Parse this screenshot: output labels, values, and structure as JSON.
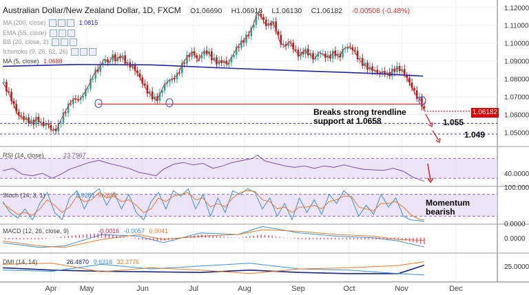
{
  "header": {
    "symbol": "Australian Dollar/New Zealand Dollar, 1D, FXCM",
    "open": "O1.06690",
    "high": "H1.06918",
    "low": "L1.06130",
    "close": "C1.06182",
    "change": "-0.00508 (-0.48%)"
  },
  "indicators": [
    {
      "label": "MA (200, close)",
      "value": "",
      "buttons": 3
    },
    {
      "label": "EMA (55, close)",
      "value": "",
      "buttons": 3
    },
    {
      "label": "BB (20, close, 2)",
      "value": "",
      "buttons": 3
    },
    {
      "label": "Ichimoku (9, 26, 52, 26)",
      "value": "",
      "buttons": 3
    },
    {
      "label": "MA (5, close)",
      "value": "1.0688",
      "buttons": 0
    }
  ],
  "ma200_value": "1.0815",
  "annotations": {
    "breaks_line1": "Breaks strong trendline",
    "breaks_line2": "support at 1.0658",
    "level1": "1.055",
    "level2": "1.049",
    "momentum_line1": "Momentum",
    "momentum_line2": "bearish"
  },
  "last_price_tag": "1.06182",
  "panels": {
    "rsi": {
      "label": "RSI (14, close)",
      "value": "23.7967"
    },
    "stoch": {
      "label": "Stoch (14, 3, 1)",
      "v1": "5.9281",
      "v2": "9.7898"
    },
    "macd": {
      "label": "MACD (12, 26, close, 9)",
      "v1": "-0.0016",
      "v2": "-0.0057",
      "v3": "0.0041"
    },
    "dmi": {
      "label": "DMI (14, 14)",
      "v1": "26.4870",
      "v2": "9.6316",
      "v3": "32.2776"
    }
  },
  "colors": {
    "up": "#26a69a",
    "down": "#b71c1c",
    "ma200": "#2222aa",
    "ma5": "#d32f2f",
    "trend": "#e53935",
    "rsi": "#7b4ea0",
    "stochK": "#3d8ed8",
    "stochD": "#e57c2d",
    "band": "#e6d9f5",
    "last": "#d80000"
  },
  "chart_data": {
    "type": "candlestick",
    "x_ticks": [
      "Apr",
      "May",
      "Jun",
      "Jul",
      "Aug",
      "Sep",
      "Oct",
      "Nov",
      "Dec"
    ],
    "y_ticks": [
      "1.12000",
      "1.11000",
      "1.10000",
      "1.09000",
      "1.08000",
      "1.07000",
      "1.06000",
      "1.05000"
    ],
    "ylim": [
      1.044,
      1.123
    ],
    "close_path": [
      [
        0,
        1.078
      ],
      [
        4,
        1.073
      ],
      [
        8,
        1.067
      ],
      [
        12,
        1.06
      ],
      [
        16,
        1.058
      ],
      [
        20,
        1.057
      ],
      [
        24,
        1.055
      ],
      [
        28,
        1.058
      ],
      [
        32,
        1.054
      ],
      [
        36,
        1.055
      ],
      [
        40,
        1.051
      ],
      [
        44,
        1.052
      ],
      [
        47,
        1.057
      ],
      [
        50,
        1.061
      ],
      [
        54,
        1.066
      ],
      [
        58,
        1.069
      ],
      [
        62,
        1.068
      ],
      [
        66,
        1.072
      ],
      [
        70,
        1.077
      ],
      [
        74,
        1.083
      ],
      [
        78,
        1.086
      ],
      [
        82,
        1.091
      ],
      [
        86,
        1.089
      ],
      [
        89,
        1.093
      ],
      [
        92,
        1.09
      ],
      [
        95,
        1.093
      ],
      [
        98,
        1.091
      ],
      [
        101,
        1.088
      ],
      [
        105,
        1.087
      ],
      [
        109,
        1.083
      ],
      [
        113,
        1.078
      ],
      [
        117,
        1.073
      ],
      [
        121,
        1.07
      ],
      [
        124,
        1.068
      ],
      [
        127,
        1.071
      ],
      [
        130,
        1.076
      ],
      [
        134,
        1.079
      ],
      [
        138,
        1.08
      ],
      [
        142,
        1.083
      ],
      [
        146,
        1.089
      ],
      [
        150,
        1.093
      ],
      [
        154,
        1.095
      ],
      [
        158,
        1.09
      ],
      [
        162,
        1.095
      ],
      [
        166,
        1.095
      ],
      [
        170,
        1.091
      ],
      [
        174,
        1.089
      ],
      [
        178,
        1.09
      ],
      [
        182,
        1.088
      ],
      [
        186,
        1.093
      ],
      [
        190,
        1.098
      ],
      [
        194,
        1.101
      ],
      [
        198,
        1.104
      ],
      [
        202,
        1.109
      ],
      [
        206,
        1.117
      ],
      [
        209,
        1.115
      ],
      [
        212,
        1.111
      ],
      [
        215,
        1.11
      ],
      [
        218,
        1.112
      ],
      [
        221,
        1.108
      ],
      [
        224,
        1.101
      ],
      [
        228,
        1.098
      ],
      [
        232,
        1.101
      ],
      [
        236,
        1.096
      ],
      [
        240,
        1.093
      ],
      [
        244,
        1.096
      ],
      [
        248,
        1.094
      ],
      [
        252,
        1.091
      ],
      [
        256,
        1.095
      ],
      [
        260,
        1.093
      ],
      [
        264,
        1.092
      ],
      [
        268,
        1.095
      ],
      [
        272,
        1.092
      ],
      [
        276,
        1.097
      ],
      [
        280,
        1.098
      ],
      [
        284,
        1.096
      ],
      [
        288,
        1.091
      ],
      [
        292,
        1.088
      ],
      [
        296,
        1.086
      ],
      [
        300,
        1.085
      ],
      [
        304,
        1.083
      ],
      [
        308,
        1.084
      ],
      [
        312,
        1.082
      ],
      [
        316,
        1.085
      ],
      [
        320,
        1.086
      ],
      [
        324,
        1.084
      ],
      [
        328,
        1.079
      ],
      [
        332,
        1.074
      ],
      [
        335,
        1.07
      ],
      [
        338,
        1.068
      ],
      [
        341,
        1.062
      ]
    ],
    "ma200": [
      [
        0,
        1.087
      ],
      [
        60,
        1.088
      ],
      [
        120,
        1.0878
      ],
      [
        180,
        1.086
      ],
      [
        240,
        1.0845
      ],
      [
        300,
        1.083
      ],
      [
        340,
        1.0815
      ]
    ],
    "trendline": {
      "level": 1.0658,
      "label": "support at 1.0658"
    },
    "levels": [
      1.055,
      1.049
    ],
    "rsi": {
      "ylim": [
        15,
        90
      ],
      "band": [
        30,
        70
      ],
      "ticks": [
        "40.0000"
      ],
      "values": [
        [
          0,
          45
        ],
        [
          8,
          50
        ],
        [
          16,
          38
        ],
        [
          24,
          35
        ],
        [
          32,
          40
        ],
        [
          40,
          30
        ],
        [
          47,
          38
        ],
        [
          54,
          48
        ],
        [
          62,
          55
        ],
        [
          70,
          62
        ],
        [
          78,
          66
        ],
        [
          86,
          60
        ],
        [
          94,
          55
        ],
        [
          102,
          50
        ],
        [
          110,
          42
        ],
        [
          118,
          38
        ],
        [
          124,
          35
        ],
        [
          130,
          48
        ],
        [
          138,
          58
        ],
        [
          146,
          62
        ],
        [
          154,
          57
        ],
        [
          162,
          60
        ],
        [
          170,
          50
        ],
        [
          178,
          55
        ],
        [
          186,
          62
        ],
        [
          194,
          66
        ],
        [
          202,
          70
        ],
        [
          206,
          77
        ],
        [
          212,
          65
        ],
        [
          220,
          60
        ],
        [
          228,
          55
        ],
        [
          236,
          52
        ],
        [
          244,
          55
        ],
        [
          252,
          50
        ],
        [
          260,
          55
        ],
        [
          268,
          52
        ],
        [
          276,
          57
        ],
        [
          284,
          52
        ],
        [
          292,
          48
        ],
        [
          300,
          47
        ],
        [
          308,
          46
        ],
        [
          316,
          50
        ],
        [
          324,
          44
        ],
        [
          332,
          32
        ],
        [
          341,
          23.8
        ]
      ]
    },
    "stoch": {
      "ylim": [
        0,
        100
      ],
      "band": [
        20,
        80
      ],
      "ticks": [
        "100.0000",
        "0.0000"
      ],
      "k": [
        [
          0,
          60
        ],
        [
          6,
          30
        ],
        [
          12,
          15
        ],
        [
          18,
          40
        ],
        [
          24,
          10
        ],
        [
          30,
          55
        ],
        [
          36,
          85
        ],
        [
          42,
          30
        ],
        [
          48,
          10
        ],
        [
          54,
          70
        ],
        [
          60,
          90
        ],
        [
          66,
          40
        ],
        [
          72,
          80
        ],
        [
          78,
          95
        ],
        [
          84,
          50
        ],
        [
          90,
          85
        ],
        [
          96,
          40
        ],
        [
          102,
          80
        ],
        [
          108,
          30
        ],
        [
          114,
          10
        ],
        [
          120,
          60
        ],
        [
          126,
          85
        ],
        [
          132,
          40
        ],
        [
          138,
          90
        ],
        [
          144,
          75
        ],
        [
          150,
          95
        ],
        [
          156,
          40
        ],
        [
          162,
          80
        ],
        [
          168,
          20
        ],
        [
          174,
          70
        ],
        [
          180,
          30
        ],
        [
          186,
          90
        ],
        [
          192,
          80
        ],
        [
          198,
          95
        ],
        [
          204,
          85
        ],
        [
          210,
          40
        ],
        [
          216,
          70
        ],
        [
          222,
          20
        ],
        [
          228,
          55
        ],
        [
          234,
          10
        ],
        [
          240,
          70
        ],
        [
          246,
          30
        ],
        [
          252,
          65
        ],
        [
          258,
          25
        ],
        [
          264,
          80
        ],
        [
          270,
          55
        ],
        [
          276,
          90
        ],
        [
          282,
          70
        ],
        [
          288,
          20
        ],
        [
          294,
          50
        ],
        [
          300,
          25
        ],
        [
          306,
          80
        ],
        [
          312,
          45
        ],
        [
          318,
          70
        ],
        [
          324,
          20
        ],
        [
          330,
          10
        ],
        [
          336,
          8
        ],
        [
          341,
          5.9
        ]
      ],
      "d": [
        [
          0,
          55
        ],
        [
          6,
          40
        ],
        [
          12,
          25
        ],
        [
          18,
          30
        ],
        [
          24,
          22
        ],
        [
          30,
          40
        ],
        [
          36,
          65
        ],
        [
          42,
          50
        ],
        [
          48,
          30
        ],
        [
          54,
          45
        ],
        [
          60,
          75
        ],
        [
          66,
          60
        ],
        [
          72,
          65
        ],
        [
          78,
          85
        ],
        [
          84,
          70
        ],
        [
          90,
          75
        ],
        [
          96,
          60
        ],
        [
          102,
          65
        ],
        [
          108,
          50
        ],
        [
          114,
          30
        ],
        [
          120,
          40
        ],
        [
          126,
          70
        ],
        [
          132,
          60
        ],
        [
          138,
          75
        ],
        [
          144,
          80
        ],
        [
          150,
          85
        ],
        [
          156,
          65
        ],
        [
          162,
          70
        ],
        [
          168,
          45
        ],
        [
          174,
          55
        ],
        [
          180,
          45
        ],
        [
          186,
          70
        ],
        [
          192,
          85
        ],
        [
          198,
          90
        ],
        [
          204,
          88
        ],
        [
          210,
          65
        ],
        [
          216,
          60
        ],
        [
          222,
          40
        ],
        [
          228,
          45
        ],
        [
          234,
          30
        ],
        [
          240,
          45
        ],
        [
          246,
          45
        ],
        [
          252,
          50
        ],
        [
          258,
          40
        ],
        [
          264,
          60
        ],
        [
          270,
          65
        ],
        [
          276,
          75
        ],
        [
          282,
          75
        ],
        [
          288,
          45
        ],
        [
          294,
          40
        ],
        [
          300,
          35
        ],
        [
          306,
          55
        ],
        [
          312,
          55
        ],
        [
          318,
          60
        ],
        [
          324,
          45
        ],
        [
          330,
          25
        ],
        [
          336,
          12
        ],
        [
          341,
          9.8
        ]
      ]
    },
    "macd": {
      "ylim": [
        -0.009,
        0.008
      ],
      "ticks": [
        "0.0000"
      ],
      "macd_line": [
        [
          0,
          -0.003
        ],
        [
          30,
          -0.006
        ],
        [
          50,
          -0.005
        ],
        [
          80,
          0.002
        ],
        [
          110,
          0.001
        ],
        [
          130,
          -0.003
        ],
        [
          160,
          0.003
        ],
        [
          190,
          0.002
        ],
        [
          210,
          0.007
        ],
        [
          240,
          0.003
        ],
        [
          270,
          0.001
        ],
        [
          300,
          0.0
        ],
        [
          320,
          -0.002
        ],
        [
          341,
          -0.0057
        ]
      ],
      "signal": [
        [
          0,
          -0.002
        ],
        [
          30,
          -0.005
        ],
        [
          50,
          -0.006
        ],
        [
          80,
          -0.001
        ],
        [
          110,
          0.002
        ],
        [
          130,
          -0.001
        ],
        [
          160,
          0.001
        ],
        [
          190,
          0.002
        ],
        [
          210,
          0.005
        ],
        [
          240,
          0.004
        ],
        [
          270,
          0.002
        ],
        [
          300,
          0.001
        ],
        [
          320,
          -0.001
        ],
        [
          341,
          -0.0016
        ]
      ]
    },
    "dmi": {
      "ylim": [
        0,
        45
      ],
      "ticks": [
        "25.0000"
      ],
      "adx": [
        [
          0,
          22
        ],
        [
          40,
          18
        ],
        [
          80,
          16
        ],
        [
          120,
          15
        ],
        [
          160,
          14
        ],
        [
          200,
          18
        ],
        [
          240,
          14
        ],
        [
          280,
          12
        ],
        [
          320,
          12
        ],
        [
          341,
          26.5
        ]
      ],
      "plus": [
        [
          0,
          18
        ],
        [
          40,
          16
        ],
        [
          80,
          28
        ],
        [
          120,
          20
        ],
        [
          160,
          25
        ],
        [
          200,
          30
        ],
        [
          240,
          20
        ],
        [
          280,
          18
        ],
        [
          320,
          12
        ],
        [
          341,
          9.6
        ]
      ],
      "minus": [
        [
          0,
          28
        ],
        [
          40,
          30
        ],
        [
          80,
          15
        ],
        [
          120,
          22
        ],
        [
          160,
          18
        ],
        [
          200,
          12
        ],
        [
          240,
          20
        ],
        [
          280,
          22
        ],
        [
          320,
          26
        ],
        [
          341,
          32.3
        ]
      ]
    }
  }
}
